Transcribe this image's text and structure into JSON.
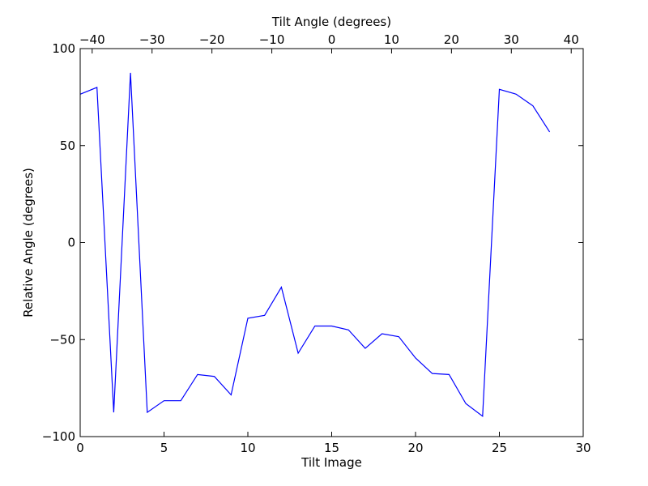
{
  "chart_data": {
    "type": "line",
    "xlabel": "Tilt Image",
    "ylabel": "Relative Angle (degrees)",
    "top_xlabel": "Tilt Angle (degrees)",
    "xlim": [
      0,
      30
    ],
    "ylim": [
      -100,
      100
    ],
    "top_xlim": [
      -42,
      42
    ],
    "grid": false,
    "legend": "none",
    "line_color": "#0000ff",
    "xticks": [
      {
        "value": 0,
        "label": "0"
      },
      {
        "value": 5,
        "label": "5"
      },
      {
        "value": 10,
        "label": "10"
      },
      {
        "value": 15,
        "label": "15"
      },
      {
        "value": 20,
        "label": "20"
      },
      {
        "value": 25,
        "label": "25"
      },
      {
        "value": 30,
        "label": "30"
      }
    ],
    "yticks": [
      {
        "value": -100,
        "label": "−100"
      },
      {
        "value": -50,
        "label": "−50"
      },
      {
        "value": 0,
        "label": "0"
      },
      {
        "value": 50,
        "label": "50"
      },
      {
        "value": 100,
        "label": "100"
      }
    ],
    "top_xticks": [
      {
        "value": -40,
        "label": "−40"
      },
      {
        "value": -30,
        "label": "−30"
      },
      {
        "value": -20,
        "label": "−20"
      },
      {
        "value": -10,
        "label": "−10"
      },
      {
        "value": 0,
        "label": "0"
      },
      {
        "value": 10,
        "label": "10"
      },
      {
        "value": 20,
        "label": "20"
      },
      {
        "value": 30,
        "label": "30"
      },
      {
        "value": 40,
        "label": "40"
      }
    ],
    "series": [
      {
        "x": [
          0,
          1,
          2,
          3,
          4,
          5,
          6,
          7,
          8,
          9,
          10,
          11,
          12,
          13,
          14,
          15,
          16,
          17,
          18,
          19,
          20,
          21,
          22,
          23,
          24,
          25,
          26,
          27,
          28
        ],
        "y": [
          76.5,
          80,
          -87.5,
          87.5,
          -87.5,
          -81.5,
          -81.5,
          -68,
          -69,
          -78.5,
          -39,
          -37.5,
          -23,
          -57,
          -43,
          -43,
          -45,
          -54.5,
          -47,
          -48.5,
          -59.5,
          -67.5,
          -68,
          -83,
          -89.5,
          79,
          76.5,
          70.5,
          57
        ]
      }
    ]
  }
}
